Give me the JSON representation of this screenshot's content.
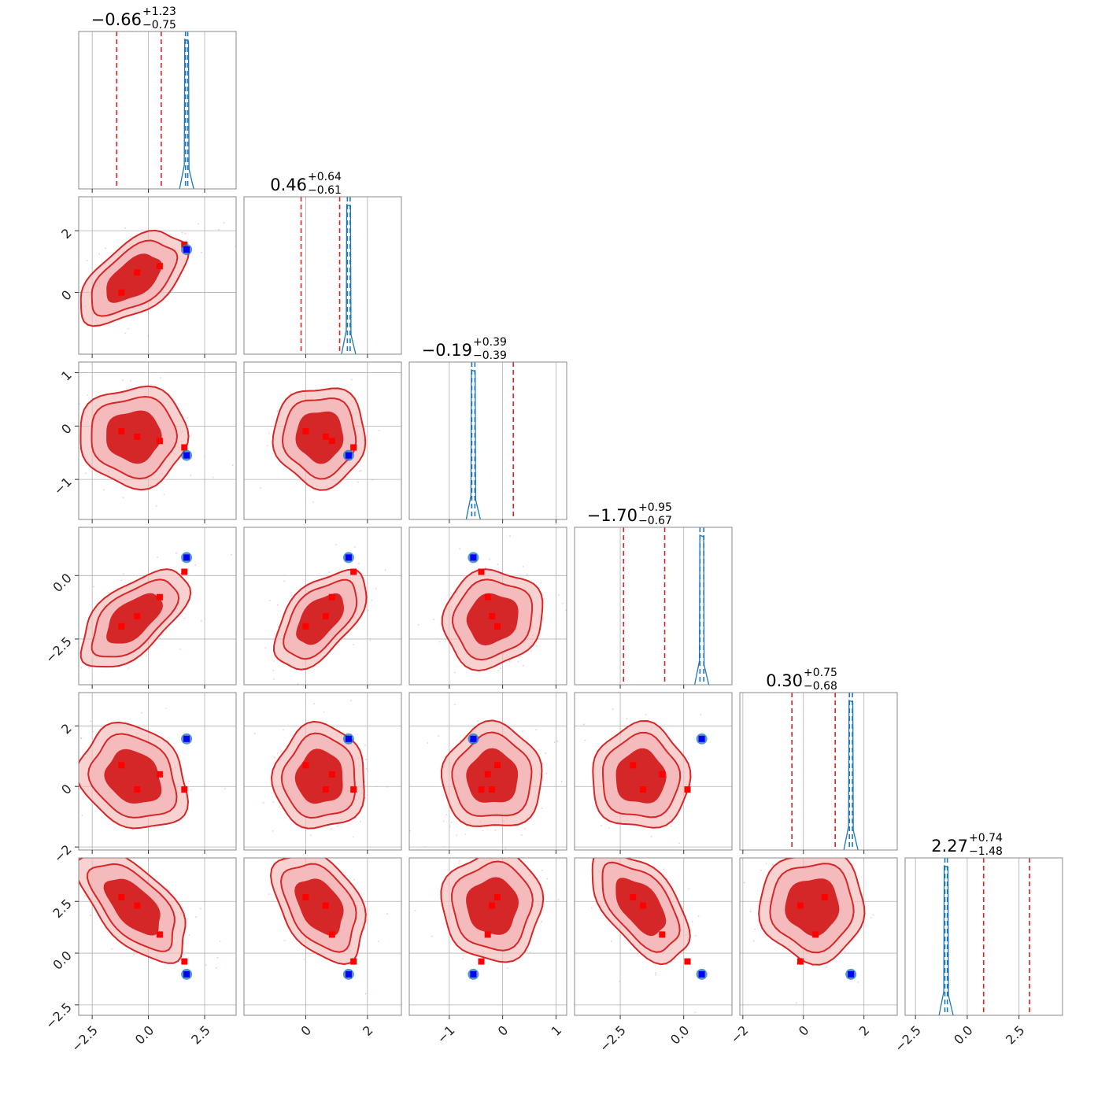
{
  "chart_data": {
    "type": "corner",
    "n_params": 6,
    "colors": {
      "samples_a": "#d62728",
      "samples_b": "#1f77b4",
      "markers_a": "#ff0000",
      "markers_b": "#0000ff",
      "fill_dark": "#d62728",
      "fill_light": "#f4b8b9"
    },
    "grid": true,
    "parameters": [
      {
        "range": [
          -3.1,
          3.9
        ],
        "ticks": [
          -2.5,
          0.0,
          2.5
        ],
        "tick_labels": [
          "−2.5",
          "0.0",
          "2.5"
        ],
        "title": {
          "main": "−0.66",
          "plus": "+1.23",
          "minus": "−0.75"
        }
      },
      {
        "range": [
          -2.0,
          3.1
        ],
        "ticks": [
          0,
          2
        ],
        "tick_labels": [
          "0",
          "2"
        ],
        "title": {
          "main": "0.46",
          "plus": "+0.64",
          "minus": "−0.61"
        }
      },
      {
        "range": [
          -1.75,
          1.2
        ],
        "ticks": [
          -1,
          0,
          1
        ],
        "tick_labels": [
          "−1",
          "0",
          "1"
        ],
        "title": {
          "main": "−0.19",
          "plus": "+0.39",
          "minus": "−0.39"
        }
      },
      {
        "range": [
          -4.3,
          1.9
        ],
        "ticks": [
          -2.5,
          0.0
        ],
        "tick_labels": [
          "−2.5",
          "0.0"
        ],
        "title": {
          "main": "−1.70",
          "plus": "+0.95",
          "minus": "−0.67"
        }
      },
      {
        "range": [
          -2.1,
          3.1
        ],
        "ticks": [
          -2,
          0,
          2
        ],
        "tick_labels": [
          "−2",
          "0",
          "2"
        ],
        "title": {
          "main": "0.30",
          "plus": "+0.75",
          "minus": "−0.68"
        }
      },
      {
        "range": [
          -3.0,
          4.6
        ],
        "ticks": [
          -2.5,
          0.0,
          2.5
        ],
        "tick_labels": [
          "−2.5",
          "0.0",
          "2.5"
        ],
        "title": {
          "main": "2.27",
          "plus": "+0.74",
          "minus": "−1.48"
        }
      }
    ],
    "sample_a": {
      "median": [
        -0.66,
        0.46,
        -0.19,
        -1.7,
        0.3,
        2.27
      ],
      "sigma": [
        1.0,
        0.62,
        0.39,
        0.8,
        0.72,
        1.1
      ],
      "quantile_lines": [
        [
          -1.41,
          0.57
        ],
        [
          -0.15,
          1.1
        ],
        [
          -0.58,
          0.2
        ],
        [
          -2.37,
          -0.75
        ],
        [
          -0.38,
          1.05
        ],
        [
          0.79,
          3.01
        ]
      ]
    },
    "sample_b": {
      "median": [
        1.7,
        1.39,
        -0.55,
        0.71,
        1.57,
        -1.02
      ],
      "quantile_lines": [
        [
          1.65,
          1.75
        ],
        [
          1.35,
          1.44
        ],
        [
          -0.58,
          -0.52
        ],
        [
          0.64,
          0.79
        ],
        [
          1.52,
          1.62
        ],
        [
          -1.08,
          -0.96
        ]
      ]
    },
    "markers_a": [
      [
        -1.2,
        0.0,
        -0.1,
        -2.0,
        0.7,
        2.7
      ],
      [
        -0.5,
        0.65,
        -0.2,
        -1.6,
        -0.1,
        2.3
      ],
      [
        0.5,
        0.85,
        -0.28,
        -0.85,
        0.4,
        0.9
      ],
      [
        1.6,
        1.55,
        -0.4,
        0.15,
        -0.1,
        -0.4
      ]
    ],
    "markers_b": [
      [
        1.7,
        1.39,
        -0.55,
        0.71,
        1.57,
        -1.02
      ]
    ]
  }
}
